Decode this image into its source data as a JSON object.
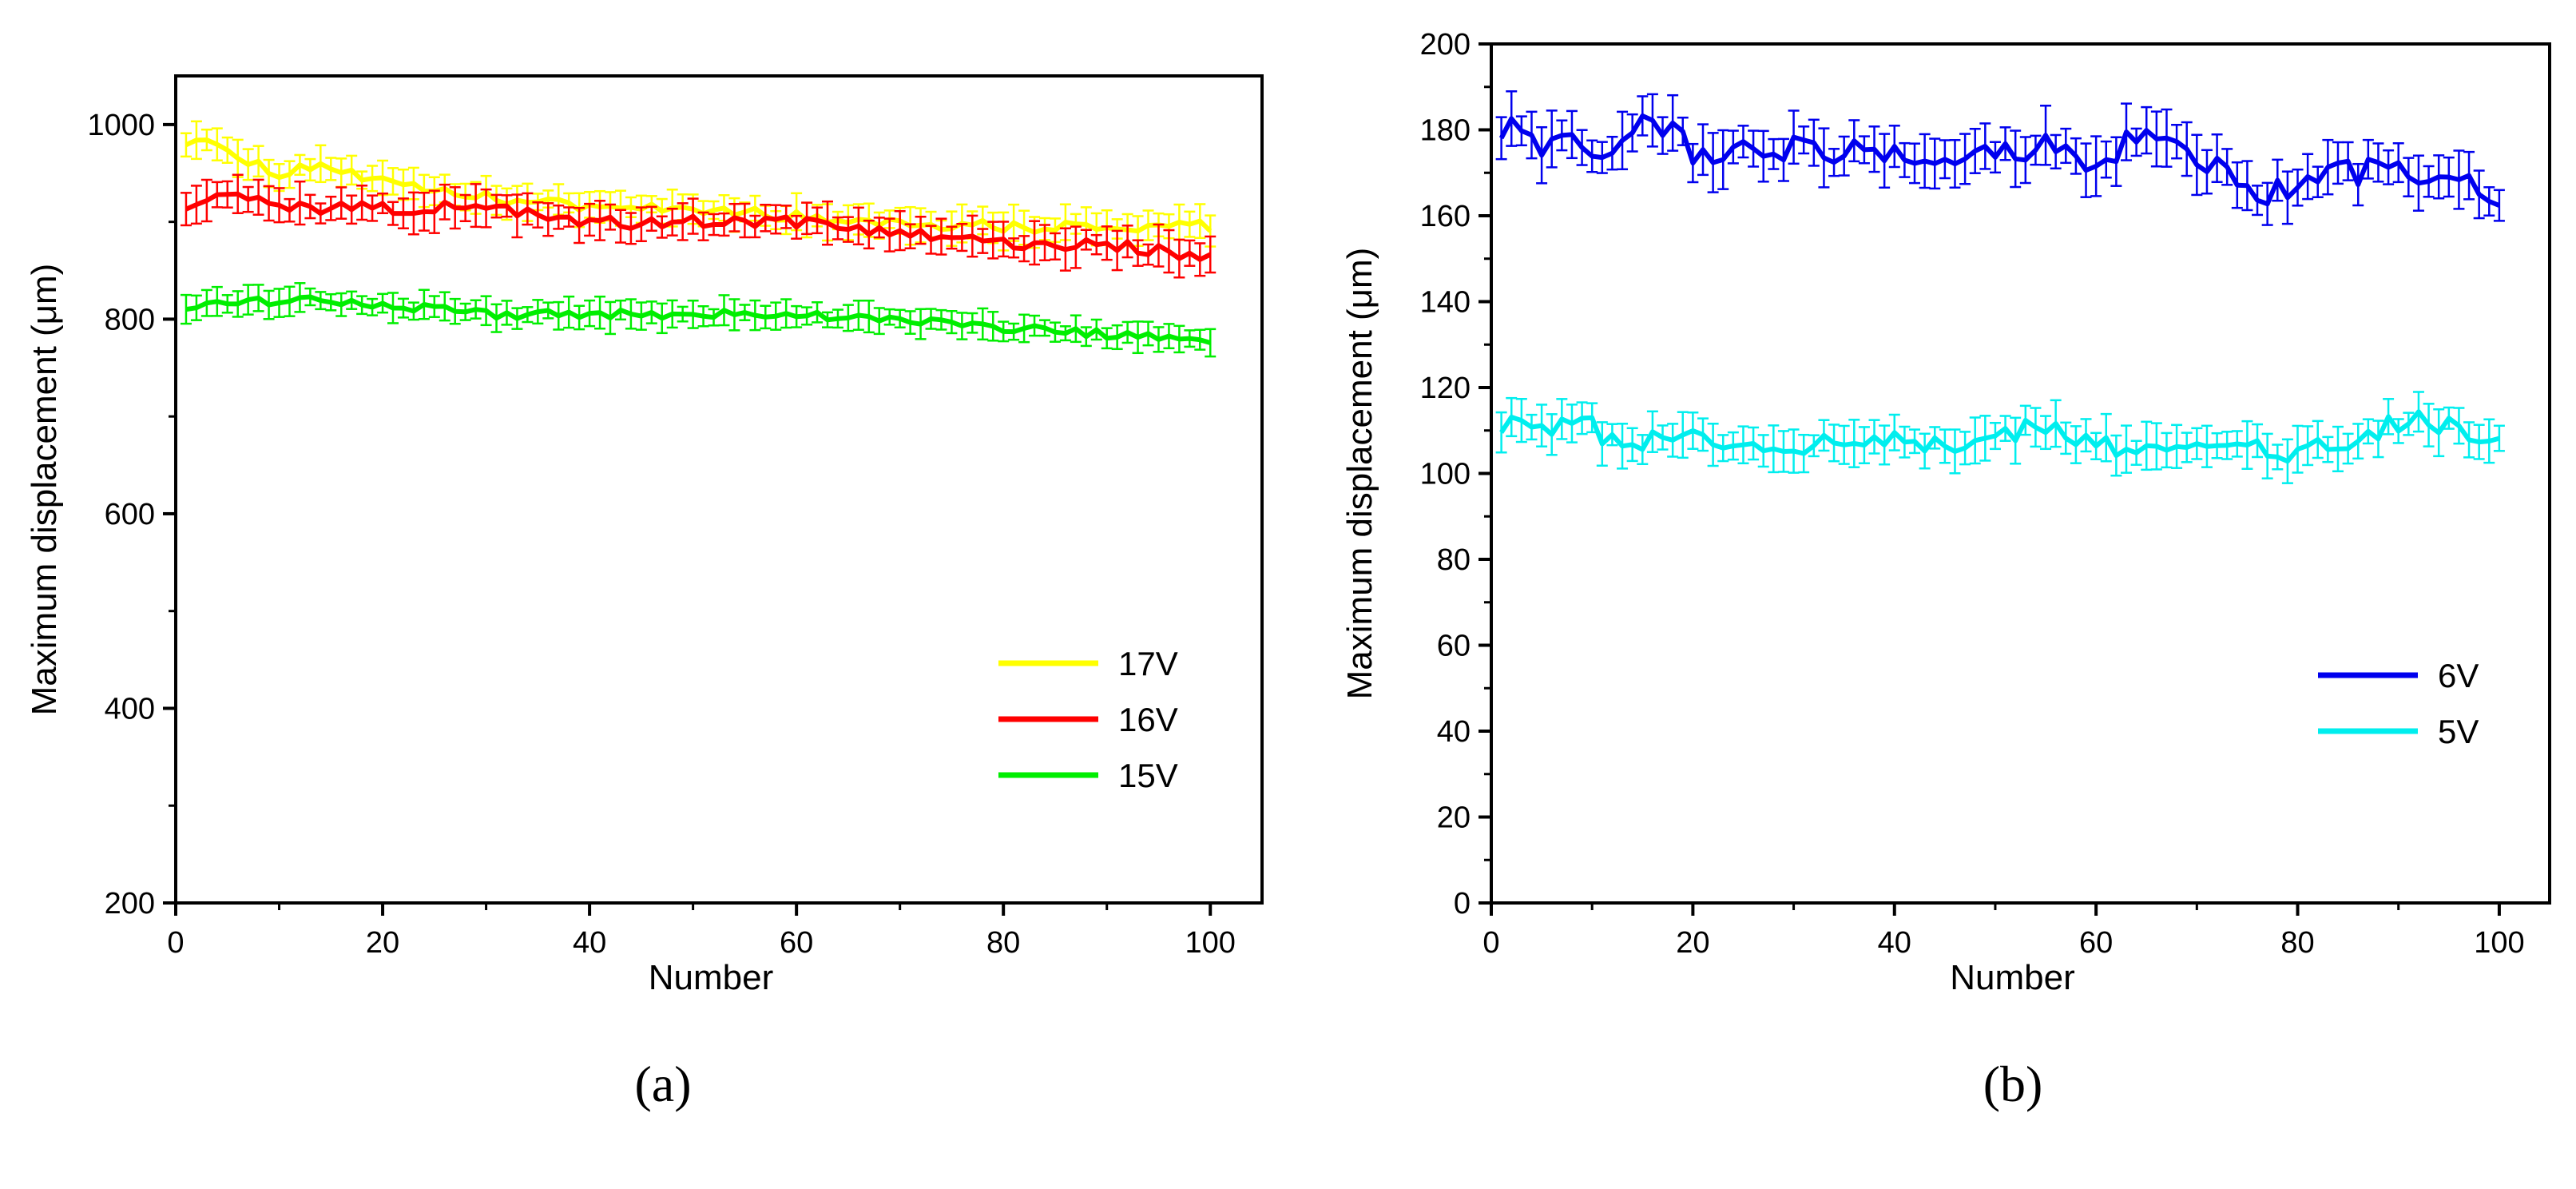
{
  "chart_data": [
    {
      "type": "line",
      "panel": "(a)",
      "xlabel": "Number",
      "ylabel": "Maximum displacement (μm)",
      "xlim": [
        0,
        105
      ],
      "ylim": [
        200,
        1050
      ],
      "xticks": [
        0,
        20,
        40,
        60,
        80,
        100
      ],
      "yticks": [
        200,
        400,
        600,
        800,
        1000
      ],
      "error_bars": true,
      "legend_position": "lower-right",
      "series": [
        {
          "name": "17V",
          "color": "#ffff00",
          "keypoints": [
            [
              1,
              985
            ],
            [
              4,
              985
            ],
            [
              7,
              960
            ],
            [
              10,
              950
            ],
            [
              12,
              955
            ],
            [
              14,
              960
            ],
            [
              18,
              945
            ],
            [
              22,
              935
            ],
            [
              30,
              925
            ],
            [
              40,
              915
            ],
            [
              50,
              915
            ],
            [
              60,
              905
            ],
            [
              70,
              900
            ],
            [
              80,
              895
            ],
            [
              90,
              895
            ],
            [
              100,
              895
            ]
          ],
          "noise": 6,
          "error": 14
        },
        {
          "name": "16V",
          "color": "#ff0000",
          "keypoints": [
            [
              1,
              920
            ],
            [
              6,
              925
            ],
            [
              10,
              915
            ],
            [
              15,
              915
            ],
            [
              20,
              915
            ],
            [
              25,
              915
            ],
            [
              30,
              915
            ],
            [
              35,
              905
            ],
            [
              40,
              900
            ],
            [
              50,
              900
            ],
            [
              60,
              900
            ],
            [
              70,
              890
            ],
            [
              80,
              880
            ],
            [
              90,
              875
            ],
            [
              100,
              865
            ]
          ],
          "noise": 7,
          "error": 16
        },
        {
          "name": "15V",
          "color": "#00ee00",
          "keypoints": [
            [
              1,
              815
            ],
            [
              10,
              820
            ],
            [
              20,
              815
            ],
            [
              30,
              805
            ],
            [
              40,
              805
            ],
            [
              50,
              805
            ],
            [
              60,
              805
            ],
            [
              70,
              800
            ],
            [
              80,
              790
            ],
            [
              90,
              785
            ],
            [
              100,
              780
            ]
          ],
          "noise": 5,
          "error": 12
        }
      ]
    },
    {
      "type": "line",
      "panel": "(b)",
      "xlabel": "Number",
      "ylabel": "Maximum displacement (μm)",
      "xlim": [
        0,
        105
      ],
      "ylim": [
        0,
        200
      ],
      "xticks": [
        0,
        20,
        40,
        60,
        80,
        100
      ],
      "yticks": [
        0,
        20,
        40,
        60,
        80,
        100,
        120,
        140,
        160,
        180,
        200
      ],
      "error_bars": true,
      "legend_position": "lower-right",
      "series": [
        {
          "name": "6V",
          "color": "#0000ee",
          "keypoints": [
            [
              1,
              181
            ],
            [
              5,
              176
            ],
            [
              8,
              180
            ],
            [
              11,
              171
            ],
            [
              16,
              183
            ],
            [
              20,
              175
            ],
            [
              30,
              176
            ],
            [
              40,
              174
            ],
            [
              50,
              175
            ],
            [
              55,
              176
            ],
            [
              60,
              172
            ],
            [
              65,
              181
            ],
            [
              70,
              173
            ],
            [
              75,
              168
            ],
            [
              77,
              165
            ],
            [
              80,
              168
            ],
            [
              85,
              170
            ],
            [
              90,
              171
            ],
            [
              95,
              168
            ],
            [
              100,
              165
            ]
          ],
          "noise": 3,
          "error": 5
        },
        {
          "name": "5V",
          "color": "#00eeee",
          "keypoints": [
            [
              1,
              112
            ],
            [
              5,
              110
            ],
            [
              8,
              113
            ],
            [
              12,
              108
            ],
            [
              20,
              108
            ],
            [
              30,
              106
            ],
            [
              40,
              108
            ],
            [
              50,
              107
            ],
            [
              54,
              113
            ],
            [
              60,
              106
            ],
            [
              70,
              108
            ],
            [
              80,
              104
            ],
            [
              85,
              108
            ],
            [
              91,
              113
            ],
            [
              100,
              108
            ]
          ],
          "noise": 2.5,
          "error": 4
        }
      ]
    }
  ],
  "panels": {
    "a_label": "(a)",
    "b_label": "(b)"
  }
}
